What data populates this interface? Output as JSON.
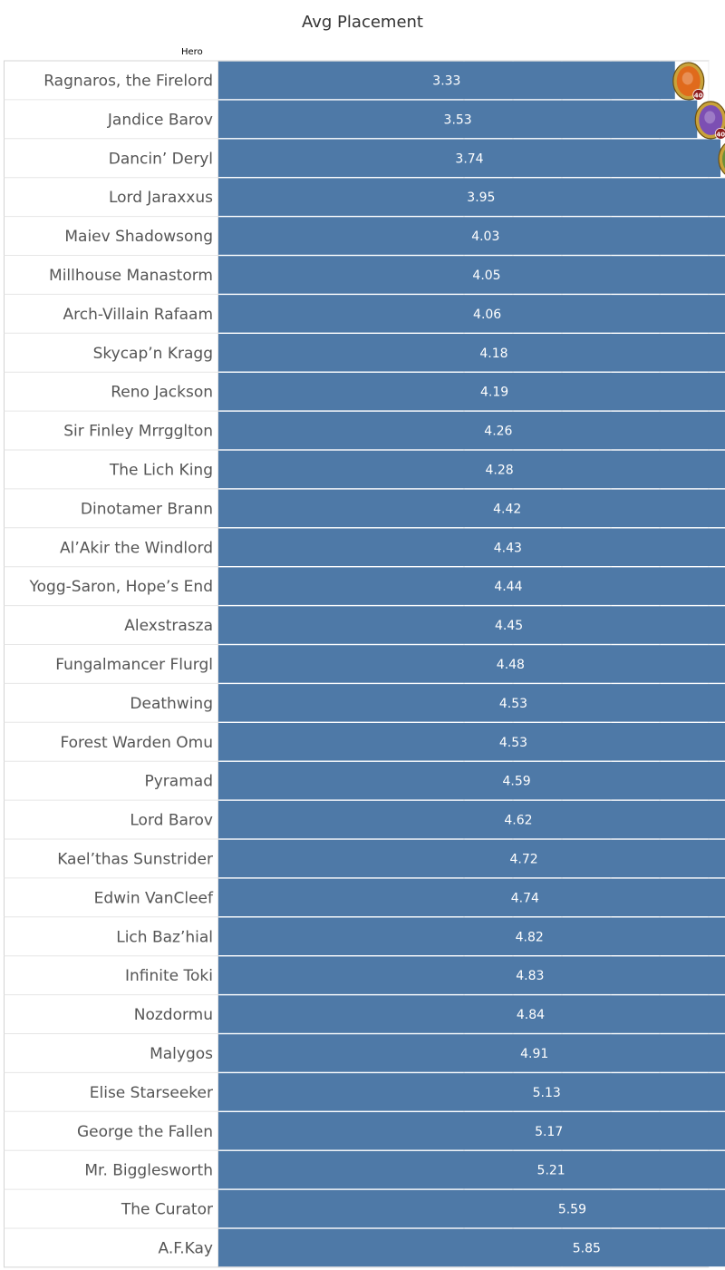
{
  "chart_data": {
    "type": "bar",
    "orientation": "horizontal",
    "title": "Avg Placement",
    "row_header": "Hero",
    "categories": [
      "Ragnaros, the Firelord",
      "Jandice Barov",
      "Dancin’ Deryl",
      "Lord Jaraxxus",
      "Maiev Shadowsong",
      "Millhouse Manastorm",
      "Arch-Villain Rafaam",
      "Skycap’n Kragg",
      "Reno Jackson",
      "Sir Finley Mrrgglton",
      "The Lich King",
      "Dinotamer Brann",
      "Al’Akir the Windlord",
      "Yogg-Saron, Hope’s End",
      "Alexstrasza",
      "Fungalmancer Flurgl",
      "Deathwing",
      "Forest Warden Omu",
      "Pyramad",
      "Lord Barov",
      "Kael’thas Sunstrider",
      "Edwin VanCleef",
      "Lich Baz’hial",
      "Infinite Toki",
      "Nozdormu",
      "Malygos",
      "Elise Starseeker",
      "George the Fallen",
      "Mr. Bigglesworth",
      "The Curator",
      "A.F.Kay"
    ],
    "values": [
      3.33,
      3.53,
      3.74,
      3.95,
      4.03,
      4.05,
      4.06,
      4.18,
      4.19,
      4.26,
      4.28,
      4.42,
      4.43,
      4.44,
      4.45,
      4.48,
      4.53,
      4.53,
      4.59,
      4.62,
      4.72,
      4.74,
      4.82,
      4.83,
      4.84,
      4.91,
      5.13,
      5.17,
      5.21,
      5.59,
      5.85
    ],
    "value_labels": [
      "3.33",
      "3.53",
      "3.74",
      "3.95",
      "4.03",
      "4.05",
      "4.06",
      "4.18",
      "4.19",
      "4.26",
      "4.28",
      "4.42",
      "4.43",
      "4.44",
      "4.45",
      "4.48",
      "4.53",
      "4.53",
      "4.59",
      "4.62",
      "4.72",
      "4.74",
      "4.82",
      "4.83",
      "4.84",
      "4.91",
      "5.13",
      "5.17",
      "5.21",
      "5.59",
      "5.85"
    ],
    "bar_color": "#4e79a7",
    "icon_badge_text": "40",
    "legend": "none",
    "grid": true
  },
  "colors": {
    "gold_frame": "#c9a23a",
    "badge": "#8c1c1c",
    "hero_tints": [
      "#e06a1c",
      "#7c4fb3",
      "#6a8f3a",
      "#b5401f",
      "#4f8f7a",
      "#6a6fc9",
      "#5a7ea0",
      "#7a6a3a",
      "#8a6ab3",
      "#c9a040",
      "#3a3f4a",
      "#b35a2a",
      "#6f6fb3",
      "#2f7a8a",
      "#b58a3a",
      "#5f9fc9",
      "#c05030",
      "#8fb04f",
      "#c99a4a",
      "#b06a3a",
      "#d09a3a",
      "#3f8a5a",
      "#4f7fb0",
      "#c060b0",
      "#8a70c0",
      "#3f5fa0",
      "#6a7fd0",
      "#a07050",
      "#8a6aa0",
      "#3f7fa0",
      "#5f9fd0"
    ]
  }
}
